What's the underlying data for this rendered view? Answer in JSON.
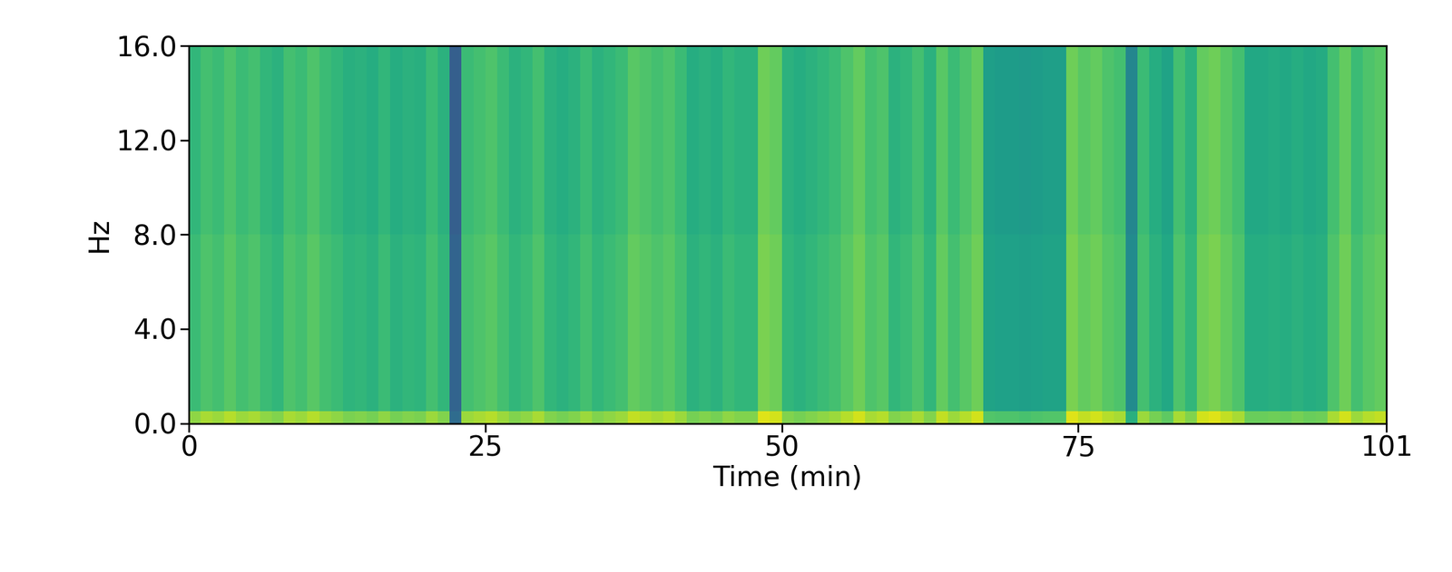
{
  "chart_data": {
    "type": "heatmap",
    "x_label": "Time (min)",
    "y_label": "Hz",
    "xlim": [
      0,
      101
    ],
    "ylim": [
      0,
      16
    ],
    "xticks": [
      0,
      25,
      50,
      75,
      101
    ],
    "yticks": [
      {
        "value": 0,
        "label": "0.0"
      },
      {
        "value": 4,
        "label": "4.0"
      },
      {
        "value": 8,
        "label": "8.0"
      },
      {
        "value": 12,
        "label": "12.0"
      },
      {
        "value": 16,
        "label": "16.0"
      }
    ],
    "color": "viridis",
    "color_range": [
      0,
      1
    ],
    "x_bins": [
      0,
      1,
      2,
      3,
      4,
      5,
      6,
      7,
      8,
      9,
      10,
      11,
      12,
      13,
      14,
      15,
      16,
      17,
      18,
      19,
      20,
      21,
      22,
      23,
      24,
      25,
      26,
      27,
      28,
      29,
      30,
      31,
      32,
      33,
      34,
      35,
      36,
      37,
      38,
      39,
      40,
      41,
      42,
      43,
      44,
      45,
      46,
      47,
      48,
      49,
      50,
      51,
      52,
      53,
      54,
      55,
      56,
      57,
      58,
      59,
      60,
      61,
      62,
      63,
      64,
      65,
      66,
      67,
      68,
      69,
      70,
      71,
      72,
      73,
      74,
      75,
      76,
      77,
      78,
      79,
      80,
      81,
      82,
      83,
      84,
      85,
      86,
      87,
      88,
      89,
      90,
      91,
      92,
      93,
      94,
      95,
      96,
      97,
      98,
      99,
      100,
      101
    ],
    "y_bins": [
      0,
      0.5,
      8,
      16
    ],
    "cells": [
      [
        0.83,
        0.87,
        0.85,
        0.89,
        0.85,
        0.87,
        0.83,
        0.81,
        0.87,
        0.85,
        0.89,
        0.85,
        0.83,
        0.8,
        0.81,
        0.79,
        0.83,
        0.79,
        0.81,
        0.8,
        0.85,
        0.81,
        0.35,
        0.85,
        0.87,
        0.89,
        0.85,
        0.81,
        0.83,
        0.87,
        0.81,
        0.79,
        0.81,
        0.85,
        0.81,
        0.83,
        0.85,
        0.91,
        0.89,
        0.87,
        0.89,
        0.85,
        0.79,
        0.81,
        0.79,
        0.83,
        0.81,
        0.81,
        0.95,
        0.93,
        0.81,
        0.79,
        0.81,
        0.83,
        0.85,
        0.89,
        0.93,
        0.87,
        0.89,
        0.81,
        0.83,
        0.87,
        0.81,
        0.91,
        0.85,
        0.89,
        0.93,
        0.73,
        0.72,
        0.72,
        0.71,
        0.72,
        0.73,
        0.73,
        0.95,
        0.91,
        0.93,
        0.89,
        0.87,
        0.63,
        0.85,
        0.79,
        0.75,
        0.87,
        0.81,
        0.93,
        0.95,
        0.91,
        0.87,
        0.77,
        0.77,
        0.78,
        0.77,
        0.79,
        0.77,
        0.78,
        0.87,
        0.93,
        0.85,
        0.89,
        0.91
      ],
      [
        0.68,
        0.72,
        0.7,
        0.74,
        0.7,
        0.72,
        0.68,
        0.66,
        0.72,
        0.7,
        0.74,
        0.7,
        0.68,
        0.65,
        0.66,
        0.64,
        0.68,
        0.64,
        0.66,
        0.65,
        0.7,
        0.66,
        0.32,
        0.7,
        0.72,
        0.74,
        0.7,
        0.66,
        0.68,
        0.72,
        0.66,
        0.64,
        0.66,
        0.7,
        0.66,
        0.68,
        0.7,
        0.76,
        0.74,
        0.72,
        0.74,
        0.7,
        0.64,
        0.66,
        0.64,
        0.68,
        0.66,
        0.66,
        0.8,
        0.78,
        0.66,
        0.64,
        0.66,
        0.68,
        0.7,
        0.74,
        0.78,
        0.72,
        0.74,
        0.66,
        0.68,
        0.72,
        0.66,
        0.76,
        0.7,
        0.74,
        0.78,
        0.58,
        0.57,
        0.57,
        0.56,
        0.57,
        0.58,
        0.58,
        0.8,
        0.76,
        0.78,
        0.74,
        0.72,
        0.48,
        0.7,
        0.64,
        0.6,
        0.72,
        0.66,
        0.78,
        0.8,
        0.76,
        0.72,
        0.62,
        0.62,
        0.63,
        0.62,
        0.64,
        0.62,
        0.63,
        0.72,
        0.78,
        0.7,
        0.74,
        0.76
      ],
      [
        0.66,
        0.7,
        0.68,
        0.72,
        0.68,
        0.7,
        0.66,
        0.64,
        0.7,
        0.68,
        0.72,
        0.68,
        0.66,
        0.63,
        0.64,
        0.62,
        0.66,
        0.62,
        0.64,
        0.63,
        0.68,
        0.64,
        0.3,
        0.68,
        0.7,
        0.72,
        0.68,
        0.64,
        0.66,
        0.7,
        0.64,
        0.62,
        0.64,
        0.68,
        0.64,
        0.66,
        0.68,
        0.74,
        0.72,
        0.7,
        0.72,
        0.68,
        0.62,
        0.64,
        0.62,
        0.66,
        0.64,
        0.64,
        0.78,
        0.76,
        0.64,
        0.62,
        0.64,
        0.66,
        0.68,
        0.72,
        0.76,
        0.7,
        0.72,
        0.64,
        0.66,
        0.7,
        0.64,
        0.74,
        0.68,
        0.72,
        0.76,
        0.56,
        0.55,
        0.55,
        0.54,
        0.55,
        0.56,
        0.56,
        0.78,
        0.74,
        0.76,
        0.72,
        0.7,
        0.46,
        0.68,
        0.62,
        0.58,
        0.7,
        0.64,
        0.76,
        0.78,
        0.74,
        0.7,
        0.6,
        0.6,
        0.61,
        0.6,
        0.62,
        0.6,
        0.61,
        0.7,
        0.76,
        0.68,
        0.72,
        0.74
      ]
    ]
  }
}
